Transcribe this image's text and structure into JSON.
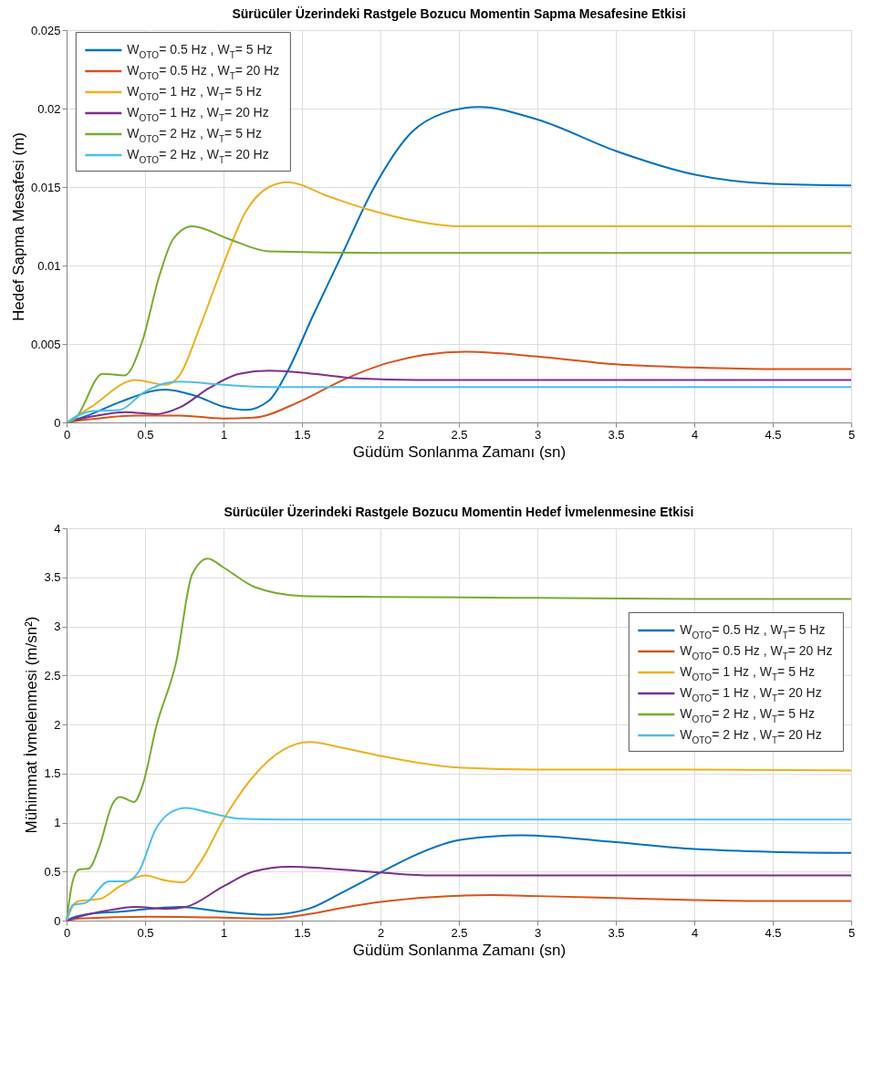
{
  "chart_data": [
    {
      "type": "line",
      "title": "Sürücüler Üzerindeki Rastgele Bozucu Momentin Sapma Mesafesine Etkisi",
      "xlabel": "Güdüm Sonlanma Zamanı (sn)",
      "ylabel": "Hedef Sapma Mesafesi (m)",
      "xlim": [
        0,
        5
      ],
      "xticks": [
        0,
        0.5,
        1,
        1.5,
        2,
        2.5,
        3,
        3.5,
        4,
        4.5,
        5
      ],
      "ylim": [
        0,
        0.025
      ],
      "yticks": [
        0,
        0.005,
        0.01,
        0.015,
        0.02,
        0.025
      ],
      "grid": true,
      "legend": "top left",
      "series": [
        {
          "name": "W$_{OTO}$= 0.5 Hz , W$_{T}$= 5 Hz",
          "color": "#0072bd",
          "x": [
            0,
            0.15,
            0.34,
            0.63,
            0.82,
            1.0,
            1.14,
            1.29,
            1.4,
            1.57,
            1.76,
            1.95,
            2.2,
            2.4,
            2.63,
            3.0,
            3.5,
            4.0,
            4.5,
            5.0
          ],
          "values": [
            0,
            0.0005,
            0.0013,
            0.0021,
            0.0017,
            0.001,
            0.0008,
            0.0014,
            0.0031,
            0.0068,
            0.0108,
            0.0148,
            0.0185,
            0.0197,
            0.0201,
            0.0193,
            0.0173,
            0.0158,
            0.0152,
            0.0151
          ]
        },
        {
          "name": "W$_{OTO}$= 0.5 Hz , W$_{T}$= 20 Hz",
          "color": "#d95319",
          "x": [
            0,
            0.15,
            0.44,
            0.72,
            1.0,
            1.19,
            1.48,
            1.76,
            2.05,
            2.55,
            3.0,
            3.5,
            4.0,
            4.5,
            5.0
          ],
          "values": [
            0,
            0.0002,
            0.00044,
            0.00044,
            0.00025,
            0.0003,
            0.0013,
            0.0027,
            0.0038,
            0.0045,
            0.0042,
            0.0037,
            0.0035,
            0.0034,
            0.0034
          ]
        },
        {
          "name": "W$_{OTO}$= 1 Hz , W$_{T}$= 5 Hz",
          "color": "#edb120",
          "x": [
            0,
            0.15,
            0.44,
            0.63,
            0.72,
            0.85,
            1.0,
            1.14,
            1.29,
            1.41,
            1.67,
            1.91,
            2.24,
            2.5,
            3.0,
            4.0,
            5.0
          ],
          "values": [
            0,
            0.00095,
            0.0027,
            0.0024,
            0.003,
            0.0061,
            0.0101,
            0.0134,
            0.015,
            0.0153,
            0.0144,
            0.0136,
            0.0128,
            0.0125,
            0.0125,
            0.0125,
            0.0125
          ]
        },
        {
          "name": "W$_{OTO}$= 1 Hz , W$_{T}$= 20 Hz",
          "color": "#7e2f8e",
          "x": [
            0,
            0.15,
            0.38,
            0.57,
            0.72,
            0.91,
            1.1,
            1.29,
            1.57,
            1.86,
            2.24,
            3.0,
            4.0,
            5.0
          ],
          "values": [
            0,
            0.00036,
            0.00066,
            0.00053,
            0.00095,
            0.0022,
            0.0031,
            0.0033,
            0.0031,
            0.0028,
            0.0027,
            0.0027,
            0.0027,
            0.0027
          ]
        },
        {
          "name": "W$_{OTO}$= 2 Hz , W$_{T}$= 5 Hz",
          "color": "#77ac30",
          "x": [
            0,
            0.05,
            0.23,
            0.37,
            0.48,
            0.59,
            0.68,
            0.8,
            1.03,
            1.29,
            2.0,
            3.0,
            4.0,
            5.0
          ],
          "values": [
            0,
            0.0002,
            0.0031,
            0.003,
            0.0051,
            0.0093,
            0.0117,
            0.0125,
            0.0117,
            0.0109,
            0.0108,
            0.0108,
            0.0108,
            0.0108
          ]
        },
        {
          "name": "W$_{OTO}$= 2 Hz , W$_{T}$= 20 Hz",
          "color": "#4dbeee",
          "x": [
            0,
            0.15,
            0.34,
            0.49,
            0.63,
            0.72,
            1.0,
            1.29,
            2.0,
            3.0,
            4.0,
            5.0
          ],
          "values": [
            0,
            0.0007,
            0.0008,
            0.0019,
            0.0025,
            0.0026,
            0.0024,
            0.00226,
            0.00225,
            0.00225,
            0.00225,
            0.00225
          ]
        }
      ]
    },
    {
      "type": "line",
      "title": "Sürücüler Üzerindeki Rastgele Bozucu Momentin Hedef İvmelenmesine Etkisi",
      "xlabel": "Güdüm Sonlanma Zamanı (sn)",
      "ylabel": "Mühimmat İvmelenmesi (m/sn²)",
      "xlim": [
        0,
        5
      ],
      "xticks": [
        0,
        0.5,
        1,
        1.5,
        2,
        2.5,
        3,
        3.5,
        4,
        4.5,
        5
      ],
      "ylim": [
        0,
        4
      ],
      "yticks": [
        0,
        0.5,
        1,
        1.5,
        2,
        2.5,
        3,
        3.5,
        4
      ],
      "grid": true,
      "legend": "right",
      "series": [
        {
          "name": "W$_{OTO}$= 0.5 Hz , W$_{T}$= 5 Hz",
          "color": "#0072bd",
          "x": [
            0,
            0.04,
            0.15,
            0.34,
            0.53,
            0.72,
            1.0,
            1.29,
            1.54,
            1.76,
            2.0,
            2.24,
            2.5,
            2.9,
            3.5,
            4.0,
            4.5,
            5.0
          ],
          "values": [
            0,
            0.03,
            0.07,
            0.09,
            0.12,
            0.14,
            0.09,
            0.06,
            0.12,
            0.29,
            0.49,
            0.68,
            0.82,
            0.87,
            0.8,
            0.73,
            0.7,
            0.69
          ]
        },
        {
          "name": "W$_{OTO}$= 0.5 Hz , W$_{T}$= 20 Hz",
          "color": "#d95319",
          "x": [
            0,
            0.08,
            0.53,
            1.0,
            1.29,
            1.52,
            1.76,
            2.0,
            2.33,
            2.71,
            3.0,
            3.5,
            4.0,
            4.5,
            5.0
          ],
          "values": [
            0,
            0.02,
            0.04,
            0.03,
            0.02,
            0.06,
            0.13,
            0.19,
            0.24,
            0.26,
            0.25,
            0.23,
            0.21,
            0.2,
            0.2
          ]
        },
        {
          "name": "W$_{OTO}$= 1 Hz , W$_{T}$= 5 Hz",
          "color": "#edb120",
          "x": [
            0,
            0.04,
            0.08,
            0.21,
            0.34,
            0.5,
            0.63,
            0.74,
            0.85,
            1.0,
            1.19,
            1.38,
            1.55,
            1.76,
            2.0,
            2.24,
            2.5,
            3.0,
            4.0,
            5.0
          ],
          "values": [
            0,
            0.15,
            0.2,
            0.22,
            0.35,
            0.46,
            0.41,
            0.39,
            0.59,
            1.03,
            1.47,
            1.74,
            1.82,
            1.76,
            1.68,
            1.61,
            1.56,
            1.54,
            1.54,
            1.53
          ]
        },
        {
          "name": "W$_{OTO}$= 1 Hz , W$_{T}$= 20 Hz",
          "color": "#7e2f8e",
          "x": [
            0,
            0.08,
            0.25,
            0.44,
            0.63,
            0.76,
            1.0,
            1.19,
            1.42,
            1.67,
            2.0,
            2.33,
            3.0,
            4.0,
            5.0
          ],
          "values": [
            0,
            0.04,
            0.1,
            0.14,
            0.12,
            0.14,
            0.35,
            0.5,
            0.55,
            0.53,
            0.49,
            0.46,
            0.46,
            0.46,
            0.46
          ]
        },
        {
          "name": "W$_{OTO}$= 2 Hz , W$_{T}$= 5 Hz",
          "color": "#77ac30",
          "x": [
            0,
            0.04,
            0.08,
            0.14,
            0.21,
            0.29,
            0.34,
            0.43,
            0.49,
            0.57,
            0.7,
            0.8,
            0.9,
            1.0,
            1.2,
            1.5,
            2.0,
            3.0,
            4.0,
            5.0
          ],
          "values": [
            0,
            0.41,
            0.52,
            0.53,
            0.76,
            1.18,
            1.26,
            1.21,
            1.41,
            1.97,
            2.65,
            3.53,
            3.69,
            3.6,
            3.4,
            3.31,
            3.3,
            3.29,
            3.28,
            3.28
          ]
        },
        {
          "name": "W$_{OTO}$= 2 Hz , W$_{T}$= 20 Hz",
          "color": "#4dbeee",
          "x": [
            0,
            0.04,
            0.12,
            0.27,
            0.38,
            0.46,
            0.57,
            0.66,
            0.76,
            0.91,
            1.1,
            1.38,
            2.0,
            3.0,
            4.0,
            5.0
          ],
          "values": [
            0,
            0.16,
            0.18,
            0.4,
            0.4,
            0.5,
            0.94,
            1.1,
            1.15,
            1.1,
            1.04,
            1.03,
            1.03,
            1.03,
            1.03,
            1.03
          ]
        }
      ]
    }
  ]
}
